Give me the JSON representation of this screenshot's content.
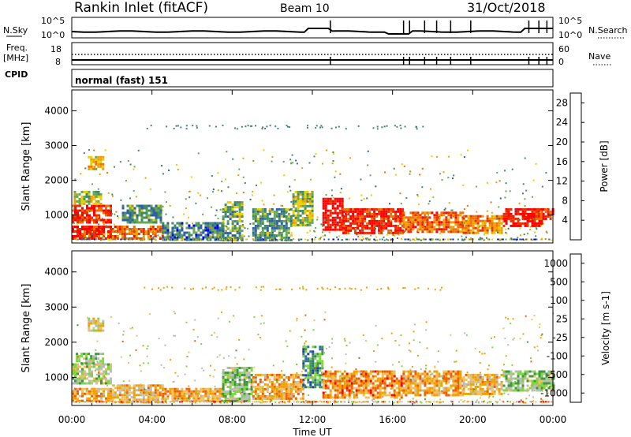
{
  "header": {
    "station": "Rankin Inlet (fitACF)",
    "beam": "Beam 10",
    "date": "31/Oct/2018"
  },
  "status_panels": {
    "nsky_label": "N.Sky",
    "nsky_ticks": [
      "10^5",
      "10^0"
    ],
    "nsearch_label": "N.Search",
    "nsearch_ticks": [
      "10^5",
      "10^0"
    ],
    "freq_label_top": "Freq.",
    "freq_label_bottom": "[MHz]",
    "freq_ticks": [
      "18",
      "8"
    ],
    "nave_label": "Nave",
    "nave_ticks": [
      "60",
      "0"
    ],
    "cpid_label": "CPID",
    "mode_text": "normal (fast) 151"
  },
  "colors": {
    "power_scale": [
      "#0000ff",
      "#2e5faa",
      "#3f8a6a",
      "#6aa84f",
      "#e8d000",
      "#f0a000",
      "#f07000",
      "#e83000",
      "#ff0000"
    ],
    "velocity_scale": [
      "#ff0000",
      "#f06000",
      "#f0a000",
      "#f0c060",
      "#bbbbbb",
      "#7fd640",
      "#3f9a3f",
      "#2e6fa0",
      "#1e3fb0"
    ]
  },
  "chart_data": [
    {
      "type": "heatmap",
      "title": "Power",
      "xlabel": "Time UT",
      "ylabel": "Slant Range [km]",
      "x_ticks": [
        "00:00",
        "04:00",
        "08:00",
        "12:00",
        "16:00",
        "20:00",
        "00:00"
      ],
      "y_ticks": [
        1000,
        2000,
        3000,
        4000
      ],
      "ylim": [
        200,
        4600
      ],
      "xlim_hours": [
        0,
        24
      ],
      "colorbar": {
        "label": "Power [dB]",
        "ticks": [
          "4",
          "8",
          "12",
          "16",
          "20",
          "24",
          "28"
        ],
        "range": [
          0,
          30
        ]
      },
      "regions": [
        {
          "t": [
            0.0,
            2.0
          ],
          "r": [
            300,
            700
          ],
          "level": 0.9
        },
        {
          "t": [
            0.0,
            2.0
          ],
          "r": [
            800,
            1300
          ],
          "level": 0.85
        },
        {
          "t": [
            0.1,
            1.5
          ],
          "r": [
            1300,
            1700
          ],
          "level": 0.45
        },
        {
          "t": [
            0.8,
            1.6
          ],
          "r": [
            2300,
            2700
          ],
          "level": 0.55
        },
        {
          "t": [
            2.0,
            4.5
          ],
          "r": [
            300,
            700
          ],
          "level": 0.75
        },
        {
          "t": [
            2.5,
            4.5
          ],
          "r": [
            800,
            1300
          ],
          "level": 0.3
        },
        {
          "t": [
            4.5,
            7.5
          ],
          "r": [
            300,
            800
          ],
          "level": 0.25
        },
        {
          "t": [
            7.5,
            8.5
          ],
          "r": [
            300,
            1400
          ],
          "level": 0.35
        },
        {
          "t": [
            9.0,
            11.0
          ],
          "r": [
            300,
            1200
          ],
          "level": 0.3
        },
        {
          "t": [
            11.0,
            12.0
          ],
          "r": [
            700,
            1700
          ],
          "level": 0.45
        },
        {
          "t": [
            12.5,
            13.5
          ],
          "r": [
            600,
            1500
          ],
          "level": 0.95
        },
        {
          "t": [
            13.5,
            16.5
          ],
          "r": [
            500,
            1200
          ],
          "level": 0.9
        },
        {
          "t": [
            16.5,
            19.5
          ],
          "r": [
            500,
            1100
          ],
          "level": 0.75
        },
        {
          "t": [
            19.5,
            21.5
          ],
          "r": [
            500,
            1000
          ],
          "level": 0.7
        },
        {
          "t": [
            21.5,
            23.5
          ],
          "r": [
            700,
            1200
          ],
          "level": 0.95
        },
        {
          "t": [
            23.0,
            24.0
          ],
          "r": [
            900,
            1200
          ],
          "level": 0.85
        }
      ],
      "scatter_band": {
        "r": [
          3500,
          3600
        ],
        "t": [
          3.5,
          18.5
        ]
      }
    },
    {
      "type": "heatmap",
      "title": "Velocity",
      "xlabel": "Time UT",
      "ylabel": "Slant Range [km]",
      "x_ticks": [
        "00:00",
        "04:00",
        "08:00",
        "12:00",
        "16:00",
        "20:00",
        "00:00"
      ],
      "y_ticks": [
        1000,
        2000,
        3000,
        4000
      ],
      "ylim": [
        200,
        4600
      ],
      "xlim_hours": [
        0,
        24
      ],
      "colorbar": {
        "label": "Velocity [m s-1]",
        "ticks": [
          "1000",
          "500",
          "100",
          "25",
          "-25",
          "-100",
          "-500",
          "-1000"
        ],
        "range": [
          -1000,
          1000
        ]
      },
      "regions": [
        {
          "t": [
            0.0,
            2.0
          ],
          "r": [
            300,
            700
          ],
          "level": 0.3
        },
        {
          "t": [
            0.0,
            2.0
          ],
          "r": [
            800,
            1400
          ],
          "level": 0.55
        },
        {
          "t": [
            0.2,
            1.5
          ],
          "r": [
            1400,
            1700
          ],
          "level": 0.6
        },
        {
          "t": [
            0.8,
            1.6
          ],
          "r": [
            2300,
            2700
          ],
          "level": 0.45
        },
        {
          "t": [
            2.0,
            4.5
          ],
          "r": [
            300,
            800
          ],
          "level": 0.35
        },
        {
          "t": [
            4.5,
            7.5
          ],
          "r": [
            300,
            700
          ],
          "level": 0.3
        },
        {
          "t": [
            7.5,
            9.0
          ],
          "r": [
            300,
            1300
          ],
          "level": 0.6
        },
        {
          "t": [
            9.0,
            11.5
          ],
          "r": [
            400,
            1100
          ],
          "level": 0.3
        },
        {
          "t": [
            11.5,
            12.5
          ],
          "r": [
            700,
            1900
          ],
          "level": 0.75
        },
        {
          "t": [
            12.5,
            16.5
          ],
          "r": [
            400,
            1200
          ],
          "level": 0.25
        },
        {
          "t": [
            16.5,
            19.5
          ],
          "r": [
            500,
            1200
          ],
          "level": 0.3
        },
        {
          "t": [
            19.5,
            21.5
          ],
          "r": [
            500,
            1100
          ],
          "level": 0.35
        },
        {
          "t": [
            21.5,
            24.0
          ],
          "r": [
            600,
            1200
          ],
          "level": 0.6
        }
      ],
      "scatter_band": {
        "r": [
          3500,
          3600
        ],
        "t": [
          3.5,
          18.5
        ]
      }
    }
  ]
}
